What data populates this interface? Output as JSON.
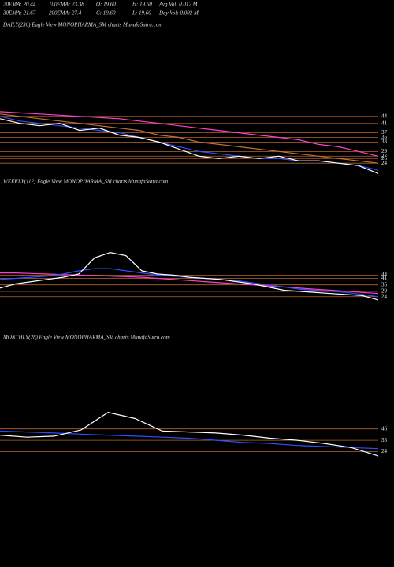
{
  "header": {
    "items": [
      "20EMA: 20.44",
      "100EMA: 23.38",
      "O: 19.60",
      "H: 19.60",
      "Avg Vol: 0.012  M",
      "30EMA: 21.67",
      "200EMA: 27.4",
      "C: 19.60",
      "L: 19.60",
      "Day Vol: 0.002  M"
    ]
  },
  "chart_data": [
    {
      "type": "line",
      "title": "DAILY(230) Eagle  View  MONOPHARMA_SM charts MunafaSutra.com",
      "ylim": [
        18,
        50
      ],
      "yticks": [
        24,
        26,
        27,
        29,
        33,
        35,
        37,
        41,
        44
      ],
      "grid": true,
      "grid_color": "#b8642a",
      "series": [
        {
          "color": "#ff3fd0",
          "values": [
            46,
            45.5,
            45,
            44.5,
            44,
            43.5,
            43,
            42,
            41,
            40,
            39,
            38,
            37,
            36,
            35,
            34,
            32,
            31,
            29,
            27
          ]
        },
        {
          "color": "#c0703a",
          "values": [
            45,
            44,
            43,
            42,
            41,
            40,
            39,
            38,
            36,
            35,
            33,
            32,
            31,
            30,
            29,
            28,
            27,
            26,
            25,
            24
          ]
        },
        {
          "color": "#2f4fff",
          "values": [
            44,
            42,
            41,
            40,
            39,
            38,
            37,
            35,
            33,
            31,
            29,
            28,
            27,
            26,
            26,
            25,
            25,
            24,
            23,
            21
          ]
        },
        {
          "color": "#ffffff",
          "values": [
            43,
            41,
            40,
            41,
            38,
            39,
            36,
            35,
            33,
            30,
            27,
            26,
            27,
            26,
            27,
            25,
            25,
            24,
            23,
            19.6
          ]
        }
      ]
    },
    {
      "type": "line",
      "title": "WEEKLY(112) Eagle  View  MONOPHARMA_SM charts MunafaSutra.com",
      "ylim": [
        18,
        80
      ],
      "yticks": [
        24,
        29,
        35,
        41,
        44
      ],
      "grid": true,
      "grid_color": "#b8642a",
      "series": [
        {
          "color": "#ff3fd0",
          "values": [
            46,
            46,
            45.5,
            45,
            44.5,
            44,
            43.5,
            43,
            42.5,
            42,
            41,
            40,
            39,
            38,
            37,
            36,
            35,
            34,
            33,
            32,
            31,
            30,
            29,
            28,
            27
          ]
        },
        {
          "color": "#2f4fff",
          "values": [
            40,
            41,
            42,
            43,
            45,
            48,
            50,
            50,
            48,
            46,
            44,
            43,
            42,
            41,
            40,
            39,
            37,
            35,
            33,
            31,
            30,
            29,
            28,
            26,
            24
          ]
        },
        {
          "color": "#ffffff",
          "values": [
            32,
            36,
            38,
            40,
            42,
            45,
            60,
            65,
            62,
            48,
            45,
            44,
            42,
            41,
            40,
            38,
            36,
            33,
            30,
            29,
            28,
            27,
            26,
            25,
            21
          ]
        }
      ]
    },
    {
      "type": "line",
      "title": "MONTHLY(28) Eagle  View  MONOPHARMA_SM charts MunafaSutra.com",
      "ylim": [
        10,
        80
      ],
      "yticks": [
        24,
        35,
        46
      ],
      "grid": true,
      "grid_color": "#b8642a",
      "series": [
        {
          "color": "#2f4fff",
          "values": [
            44,
            43,
            42,
            41,
            40,
            39,
            38,
            37,
            35,
            33,
            32,
            30,
            29,
            28,
            27
          ]
        },
        {
          "color": "#ffffff",
          "values": [
            40,
            38,
            39,
            45,
            62,
            56,
            44,
            43,
            42,
            40,
            37,
            35,
            32,
            28,
            20
          ]
        }
      ]
    }
  ]
}
